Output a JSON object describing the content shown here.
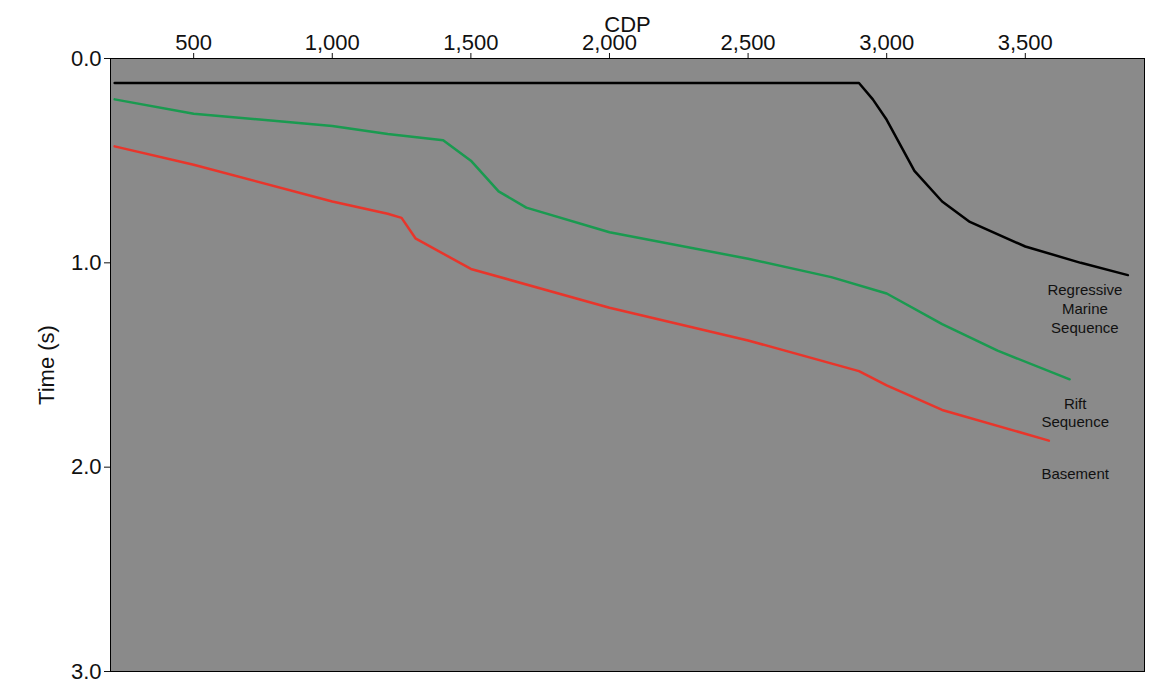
{
  "chart_data": {
    "type": "line",
    "x_label": "CDP",
    "y_label": "Time (s)",
    "xlim": [
      200,
      3930
    ],
    "xticks": [
      500,
      1000,
      1500,
      2000,
      2500,
      3000,
      3500
    ],
    "ylim": [
      0,
      3
    ],
    "yticks": [
      0,
      1,
      2,
      3
    ],
    "grid": false,
    "series": [
      {
        "color": "#000000",
        "x": [
          215,
          2900,
          2950,
          3000,
          3100,
          3200,
          3300,
          3500,
          3700,
          3870
        ],
        "values": [
          0.12,
          0.12,
          0.2,
          0.3,
          0.55,
          0.7,
          0.8,
          0.92,
          1.0,
          1.06
        ]
      },
      {
        "color": "#1a9a50",
        "x": [
          215,
          500,
          1000,
          1200,
          1400,
          1500,
          1600,
          1700,
          2000,
          2500,
          2800,
          3000,
          3200,
          3400,
          3660
        ],
        "values": [
          0.2,
          0.27,
          0.33,
          0.37,
          0.4,
          0.5,
          0.65,
          0.73,
          0.85,
          0.98,
          1.07,
          1.15,
          1.3,
          1.43,
          1.57
        ]
      },
      {
        "color": "#e8352b",
        "x": [
          215,
          500,
          1000,
          1200,
          1250,
          1300,
          1500,
          2000,
          2500,
          2900,
          3000,
          3200,
          3585
        ],
        "values": [
          0.43,
          0.52,
          0.7,
          0.76,
          0.78,
          0.88,
          1.03,
          1.22,
          1.38,
          1.53,
          1.6,
          1.72,
          1.87
        ]
      }
    ],
    "annotations": [
      {
        "text": "Regressive Marine Sequence",
        "x": 3715,
        "y": 1.22
      },
      {
        "text": "Rift Sequence",
        "x": 3680,
        "y": 1.73
      },
      {
        "text": "Basement",
        "x": 3680,
        "y": 2.03
      }
    ]
  }
}
